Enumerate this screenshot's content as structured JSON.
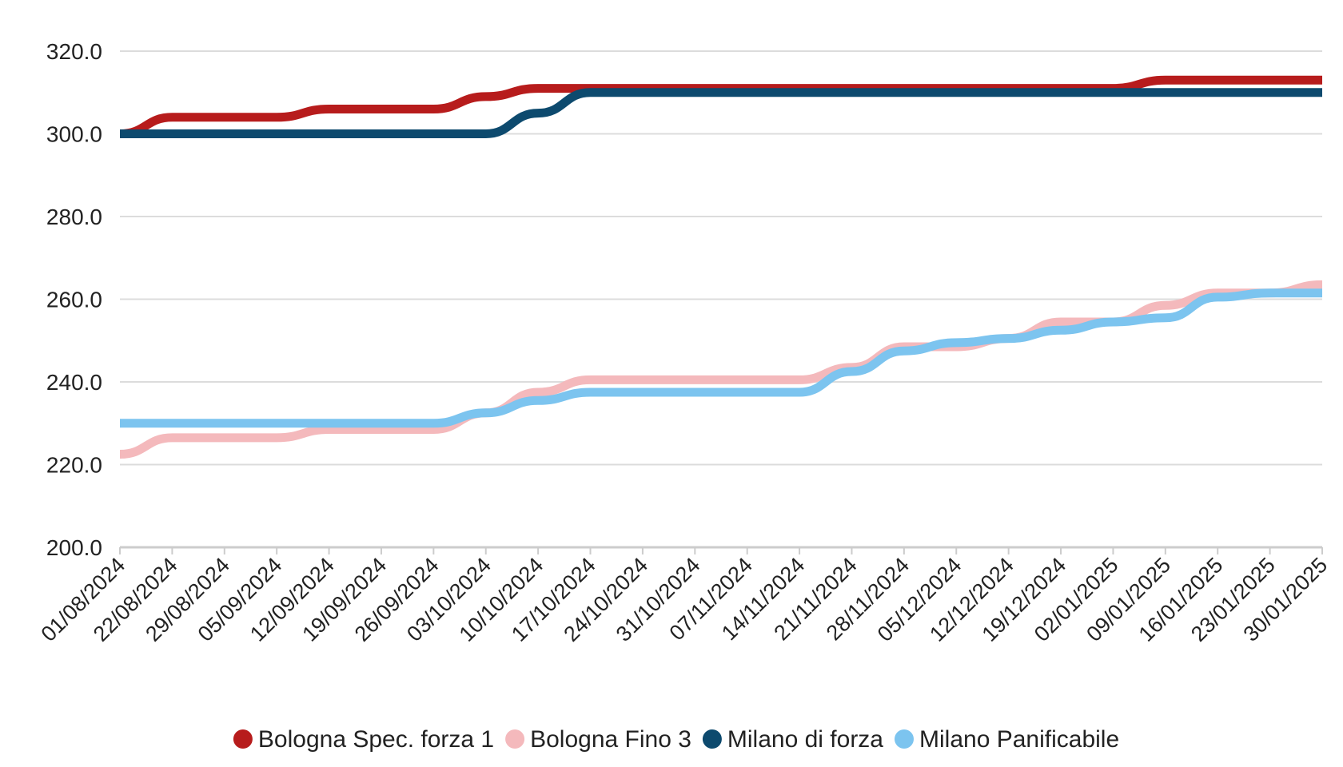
{
  "chart_data": {
    "type": "line",
    "title": "",
    "xlabel": "",
    "ylabel": "",
    "ylim": [
      200,
      320
    ],
    "y_ticks": [
      "200.0",
      "220.0",
      "240.0",
      "260.0",
      "280.0",
      "300.0",
      "320.0"
    ],
    "grid": true,
    "legend_position": "bottom",
    "categories": [
      "01/08/2024",
      "22/08/2024",
      "29/08/2024",
      "05/09/2024",
      "12/09/2024",
      "19/09/2024",
      "26/09/2024",
      "03/10/2024",
      "10/10/2024",
      "17/10/2024",
      "24/10/2024",
      "31/10/2024",
      "07/11/2024",
      "14/11/2024",
      "21/11/2024",
      "28/11/2024",
      "05/12/2024",
      "12/12/2024",
      "19/12/2024",
      "02/01/2025",
      "09/01/2025",
      "16/01/2025",
      "23/01/2025",
      "30/01/2025"
    ],
    "series": [
      {
        "name": "Bologna Spec. forza 1",
        "color": "#b71c1c",
        "values": [
          300,
          304,
          304,
          304,
          306,
          306,
          306,
          309,
          311,
          311,
          311,
          311,
          311,
          311,
          311,
          311,
          311,
          311,
          311,
          311,
          313,
          313,
          313,
          313
        ]
      },
      {
        "name": "Bologna Fino 3",
        "color": "#f4b9bc",
        "values": [
          222.5,
          226.5,
          226.5,
          226.5,
          228.5,
          228.5,
          228.5,
          232.5,
          237.5,
          240.5,
          240.5,
          240.5,
          240.5,
          240.5,
          243.5,
          248.5,
          248.5,
          250.5,
          254.5,
          254.5,
          258.5,
          261.5,
          261.5,
          263.5
        ]
      },
      {
        "name": "Milano di forza",
        "color": "#0d4a6e",
        "values": [
          300,
          300,
          300,
          300,
          300,
          300,
          300,
          300,
          305,
          310,
          310,
          310,
          310,
          310,
          310,
          310,
          310,
          310,
          310,
          310,
          310,
          310,
          310,
          310
        ]
      },
      {
        "name": "Milano Panificabile",
        "color": "#7cc4ef",
        "values": [
          230,
          230,
          230,
          230,
          230,
          230,
          230,
          232.5,
          235.5,
          237.5,
          237.5,
          237.5,
          237.5,
          237.5,
          242.5,
          247.5,
          249.5,
          250.5,
          252.5,
          254.5,
          255.5,
          260.5,
          261.5,
          261.5
        ]
      }
    ]
  }
}
